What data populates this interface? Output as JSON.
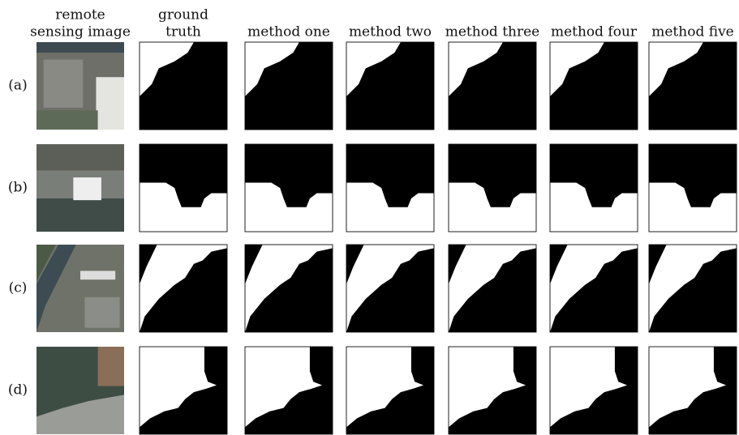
{
  "columns": [
    [
      "remote",
      "sensing image"
    ],
    [
      "ground",
      "truth"
    ],
    [
      "method one"
    ],
    [
      "method two"
    ],
    [
      "method three"
    ],
    [
      "method four"
    ],
    [
      "method five"
    ]
  ],
  "rows": [
    "(a)",
    "(b)",
    "(c)",
    "(d)"
  ]
}
